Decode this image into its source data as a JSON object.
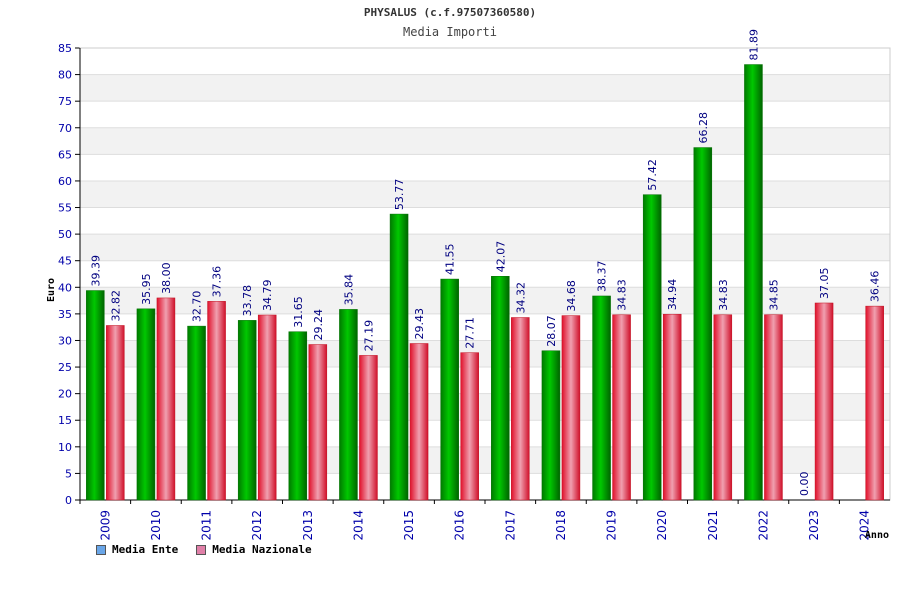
{
  "title": "PHYSALUS (c.f.97507360580)",
  "subtitle": "Media Importi",
  "chart_data": {
    "type": "bar",
    "title": "PHYSALUS (c.f.97507360580)",
    "subtitle": "Media Importi",
    "xlabel": "Anno",
    "ylabel": "Euro",
    "categories": [
      "2009",
      "2010",
      "2011",
      "2012",
      "2013",
      "2014",
      "2015",
      "2016",
      "2017",
      "2018",
      "2019",
      "2020",
      "2021",
      "2022",
      "2023",
      "2024"
    ],
    "series": [
      {
        "name": "Media Ente",
        "color": "#00aa00",
        "values": [
          39.39,
          35.95,
          32.7,
          33.78,
          31.65,
          35.84,
          53.77,
          41.55,
          42.07,
          28.07,
          38.37,
          57.42,
          66.28,
          81.89,
          0.0,
          null
        ],
        "labels": [
          "39.39",
          "35.95",
          "32.70",
          "33.78",
          "31.65",
          "35.84",
          "53.77",
          "41.55",
          "42.07",
          "28.07",
          "38.37",
          "57.42",
          "66.28",
          "81.89",
          "0.00",
          ""
        ]
      },
      {
        "name": "Media Nazionale",
        "color": "#e63a4a",
        "values": [
          32.82,
          38.0,
          37.36,
          34.79,
          29.24,
          27.19,
          29.43,
          27.71,
          34.32,
          34.68,
          34.83,
          34.94,
          34.83,
          34.85,
          37.05,
          36.46
        ],
        "labels": [
          "32.82",
          "38.00",
          "37.36",
          "34.79",
          "29.24",
          "27.19",
          "29.43",
          "27.71",
          "34.32",
          "34.68",
          "34.83",
          "34.94",
          "34.83",
          "34.85",
          "37.05",
          "36.46"
        ]
      }
    ],
    "ylim": [
      0,
      85
    ],
    "yticks": [
      0,
      5,
      10,
      15,
      20,
      25,
      30,
      35,
      40,
      45,
      50,
      55,
      60,
      65,
      70,
      75,
      80,
      85
    ],
    "grid": true,
    "legend_position": "bottom-left",
    "legend_swatch_colors": [
      "#6aa6e8",
      "#e080a8"
    ],
    "axis_color": "#0000aa"
  },
  "legend": [
    {
      "label": "Media Ente",
      "color": "#6aa6e8"
    },
    {
      "label": "Media Nazionale",
      "color": "#e080a8"
    }
  ]
}
